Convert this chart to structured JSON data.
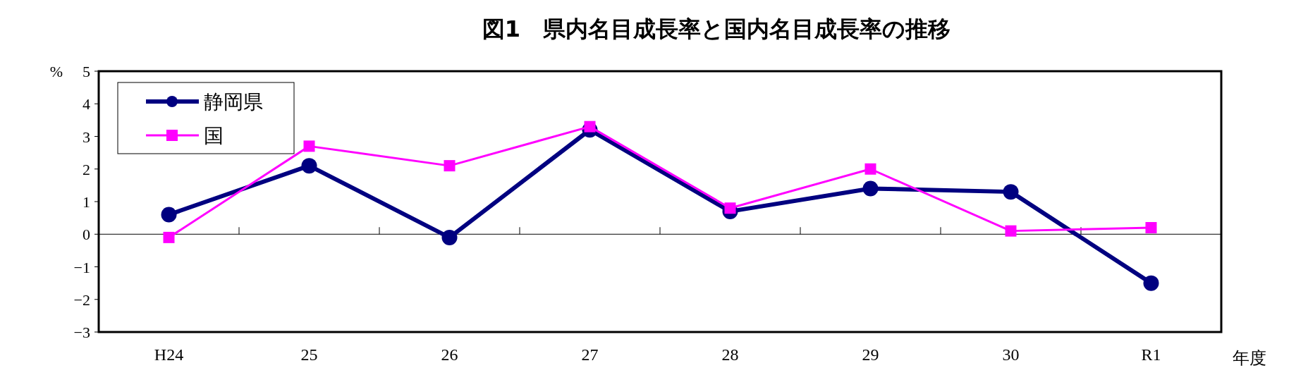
{
  "chart_data": {
    "type": "line",
    "title": "図1　県内名目成長率と国内名目成長率の推移",
    "ylabel": "%",
    "xlabel": "年度",
    "categories": [
      "H24",
      "25",
      "26",
      "27",
      "28",
      "29",
      "30",
      "R1"
    ],
    "series": [
      {
        "name": "静岡県",
        "color": "#000080",
        "marker": "circle",
        "values": [
          0.6,
          2.1,
          -0.1,
          3.2,
          0.7,
          1.4,
          1.3,
          -1.5
        ]
      },
      {
        "name": "国",
        "color": "#ff00ff",
        "marker": "square",
        "values": [
          -0.1,
          2.7,
          2.1,
          3.3,
          0.8,
          2.0,
          0.1,
          0.2
        ]
      }
    ],
    "ylim": [
      -3,
      5
    ],
    "yticks": [
      {
        "value": -3,
        "label": "−3"
      },
      {
        "value": -2,
        "label": "−2"
      },
      {
        "value": -1,
        "label": "−1"
      },
      0,
      1,
      2,
      3,
      4,
      5
    ],
    "legend": "top left"
  }
}
